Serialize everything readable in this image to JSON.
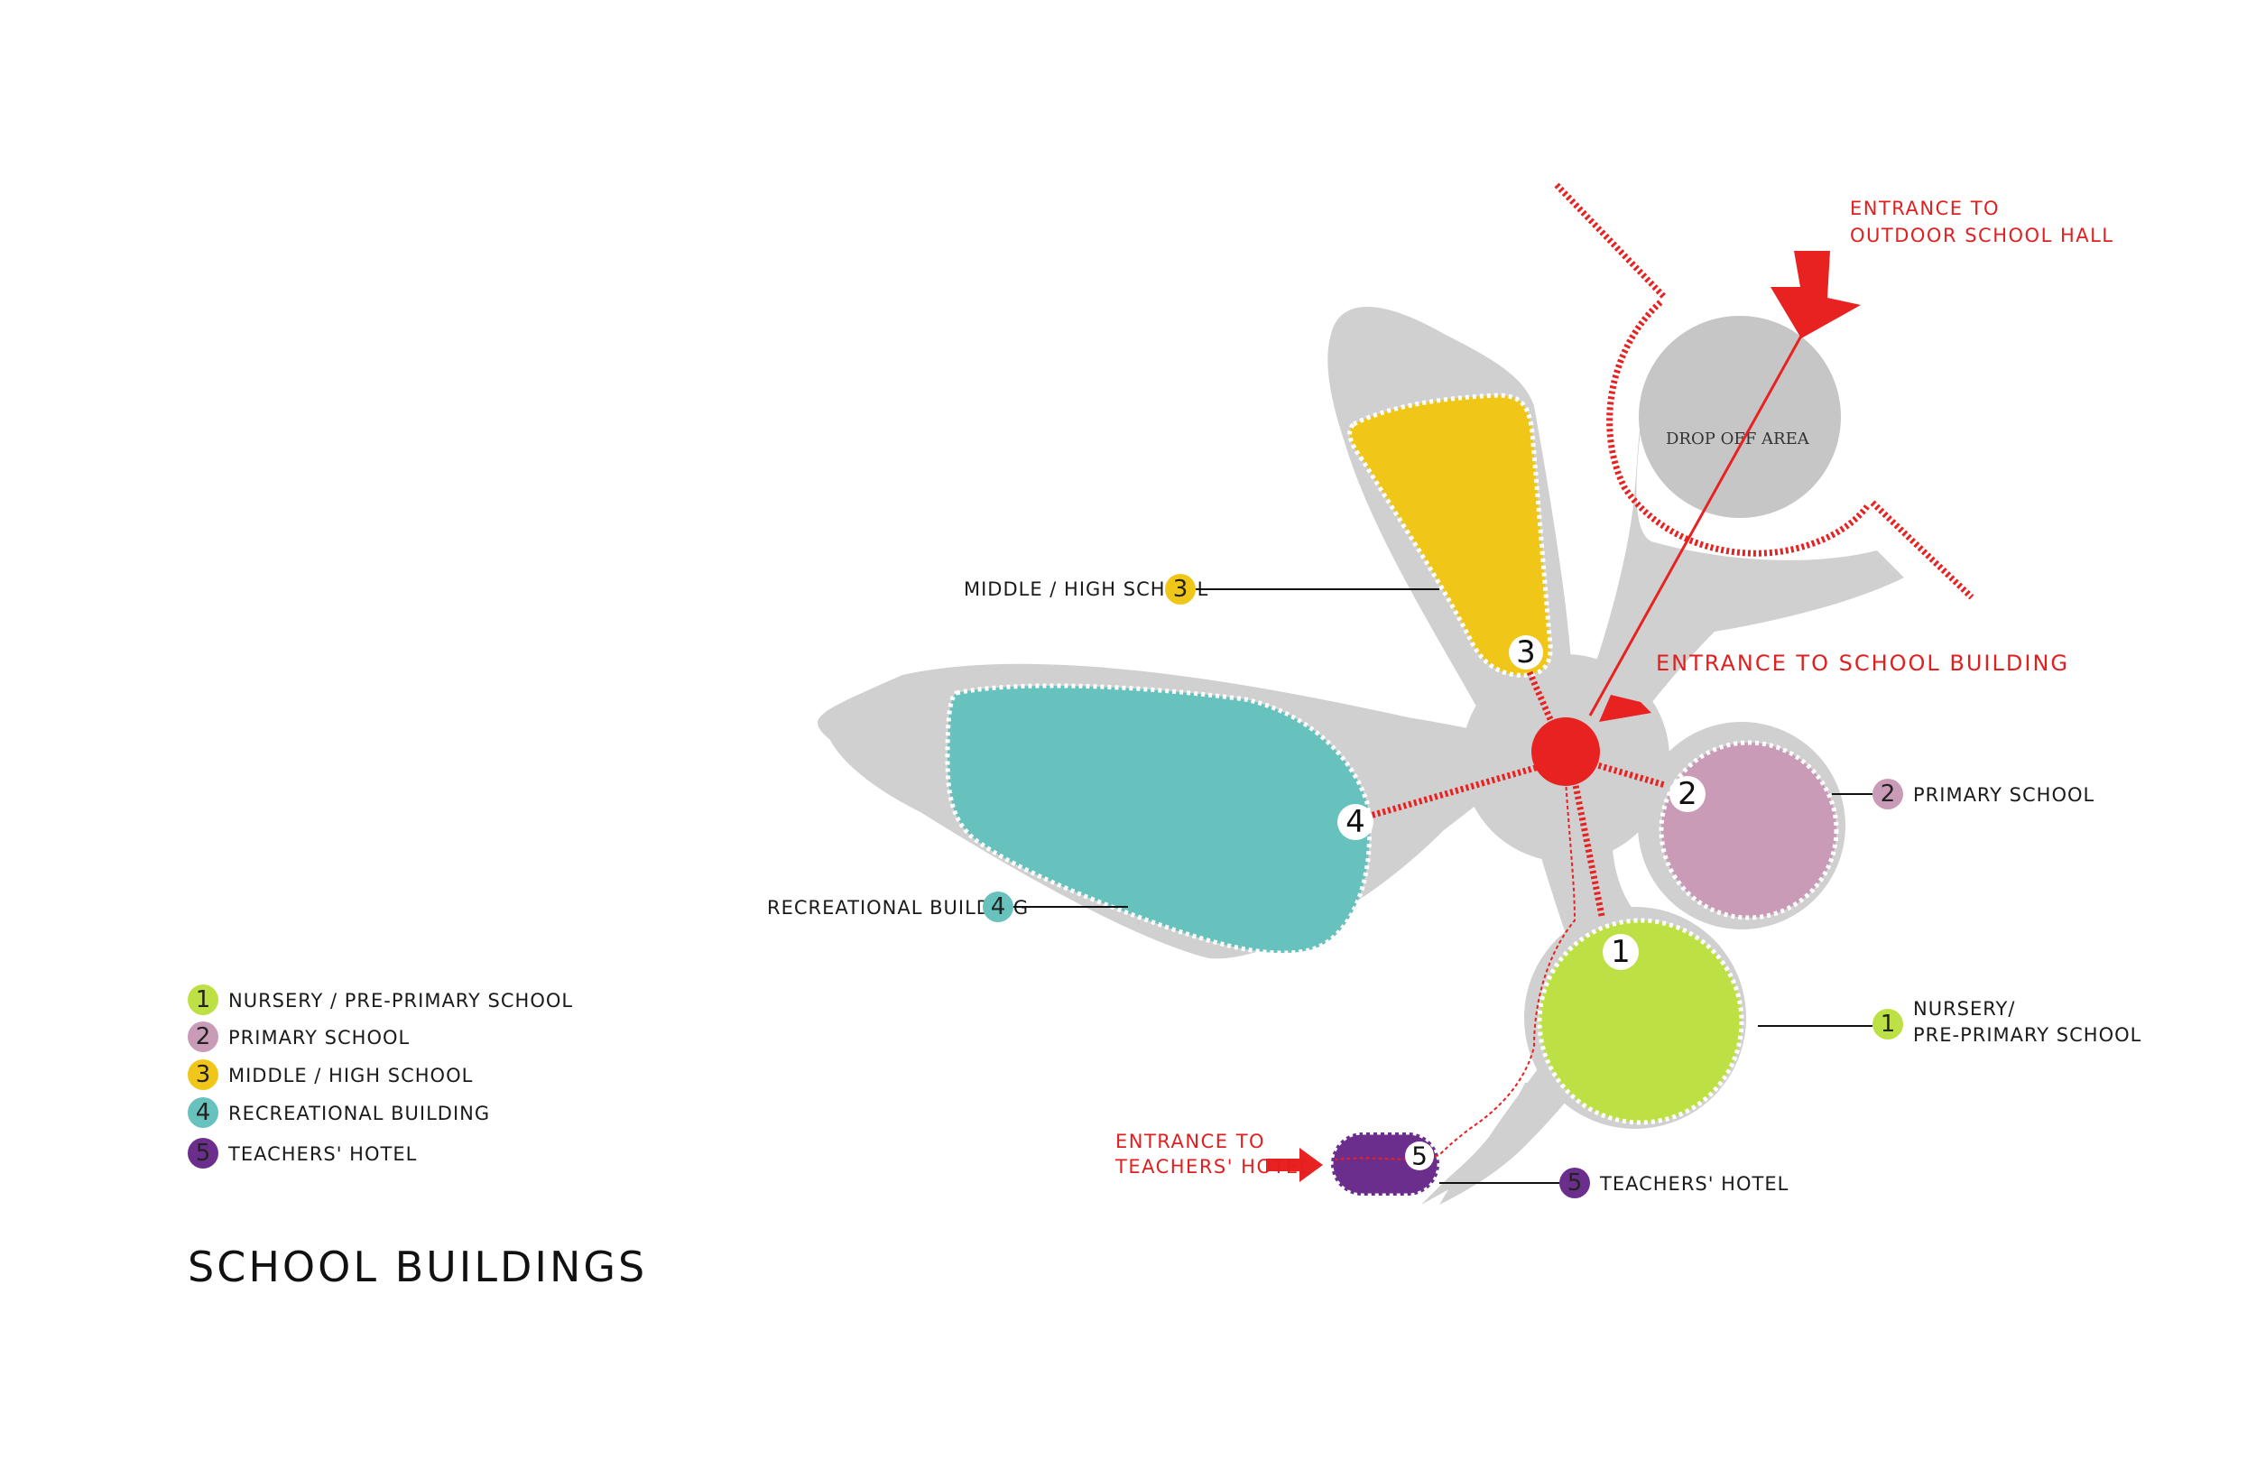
{
  "title": "SCHOOL BUILDINGS",
  "colors": {
    "nursery": "#bde144",
    "primary": "#c99bb6",
    "middle_high": "#f0c619",
    "recreational": "#67c1bd",
    "hotel": "#6b2e8c",
    "site": "#d0d0d0",
    "entrance": "#e82121"
  },
  "legend": [
    {
      "num": "1",
      "label": "NURSERY / PRE-PRIMARY SCHOOL"
    },
    {
      "num": "2",
      "label": "PRIMARY SCHOOL"
    },
    {
      "num": "3",
      "label": "MIDDLE / HIGH SCHOOL"
    },
    {
      "num": "4",
      "label": "RECREATIONAL BUILDING"
    },
    {
      "num": "5",
      "label": "TEACHERS' HOTEL"
    }
  ],
  "callouts": {
    "middle_high": {
      "num": "3",
      "label": "MIDDLE / HIGH SCHOOL"
    },
    "recreational": {
      "num": "4",
      "label": "RECREATIONAL BUILDING"
    },
    "primary": {
      "num": "2",
      "label": "PRIMARY SCHOOL"
    },
    "nursery": {
      "num": "1",
      "label_line1": "NURSERY/",
      "label_line2": "PRE-PRIMARY SCHOOL"
    },
    "hotel": {
      "num": "5",
      "label": "TEACHERS' HOTEL"
    }
  },
  "building_numbers": {
    "nursery": "1",
    "primary": "2",
    "middle_high": "3",
    "recreational": "4",
    "hotel": "5"
  },
  "entrances": {
    "outdoor_hall_line1": "ENTRANCE TO",
    "outdoor_hall_line2": "OUTDOOR SCHOOL HALL",
    "school_building": "ENTRANCE TO SCHOOL BUILDING",
    "hotel_line1": "ENTRANCE TO",
    "hotel_line2": "TEACHERS' HOTEL"
  },
  "drop_off": "DROP OFF AREA"
}
